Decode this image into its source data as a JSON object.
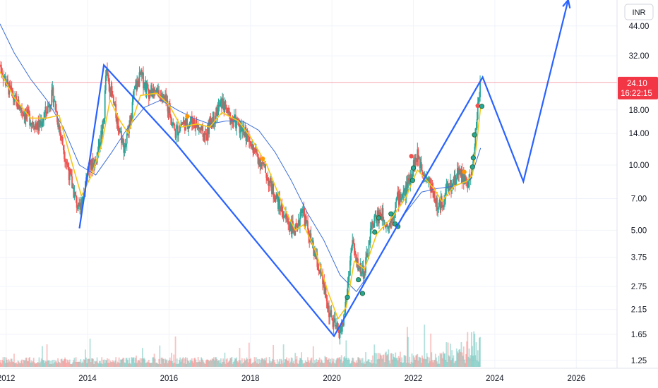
{
  "currency_button": "INR",
  "price_badge": {
    "price": "24.10",
    "countdown": "16:22:15"
  },
  "colors": {
    "up": "#26a69a",
    "down": "#ef5350",
    "pattern": "#2962ff",
    "ma_fast": "#f5c518",
    "ma_slow": "#3d6fd6",
    "badge": "#f23645",
    "marker_green": "#26a69a",
    "marker_red": "#ef5350",
    "marker_orange": "#ff9800"
  },
  "chart_data": {
    "type": "line",
    "x_unit": "year",
    "y_scale": "log",
    "xlim": [
      2011.85,
      2027.0
    ],
    "ylim": [
      1.15,
      58
    ],
    "y_ticks": [
      1.25,
      1.65,
      2.15,
      2.75,
      3.75,
      5.0,
      7.0,
      10.0,
      14.0,
      18.0,
      32.0,
      44.0
    ],
    "y_tick_labels": [
      "1.25",
      "1.65",
      "2.15",
      "2.75",
      "3.75",
      "5.00",
      "7.00",
      "10.00",
      "14.00",
      "18.00",
      "32.00",
      "44.00"
    ],
    "x_ticks": [
      2012,
      2014,
      2016,
      2018,
      2020,
      2022,
      2024,
      2026
    ],
    "x_tick_labels": [
      "2012",
      "2014",
      "2016",
      "2018",
      "2020",
      "2022",
      "2024",
      "2026"
    ],
    "grid": true,
    "last_price": 24.1,
    "price_series": [
      [
        2011.85,
        29.0
      ],
      [
        2012.0,
        24.0
      ],
      [
        2012.2,
        20.0
      ],
      [
        2012.5,
        17.0
      ],
      [
        2012.8,
        15.0
      ],
      [
        2013.0,
        18.0
      ],
      [
        2013.15,
        21.5
      ],
      [
        2013.3,
        15.0
      ],
      [
        2013.5,
        10.0
      ],
      [
        2013.7,
        7.0
      ],
      [
        2013.8,
        6.0
      ],
      [
        2014.0,
        9.5
      ],
      [
        2014.2,
        10.5
      ],
      [
        2014.4,
        16.0
      ],
      [
        2014.45,
        27.0
      ],
      [
        2014.55,
        23.0
      ],
      [
        2014.7,
        17.0
      ],
      [
        2014.9,
        12.0
      ],
      [
        2015.0,
        14.0
      ],
      [
        2015.15,
        22.0
      ],
      [
        2015.3,
        26.0
      ],
      [
        2015.5,
        22.0
      ],
      [
        2015.8,
        21.0
      ],
      [
        2016.0,
        18.5
      ],
      [
        2016.15,
        14.0
      ],
      [
        2016.3,
        15.5
      ],
      [
        2016.6,
        16.0
      ],
      [
        2016.9,
        13.5
      ],
      [
        2017.0,
        15.5
      ],
      [
        2017.3,
        19.5
      ],
      [
        2017.5,
        16.5
      ],
      [
        2017.8,
        15.0
      ],
      [
        2018.0,
        12.5
      ],
      [
        2018.3,
        10.0
      ],
      [
        2018.5,
        8.0
      ],
      [
        2018.8,
        6.0
      ],
      [
        2019.0,
        5.2
      ],
      [
        2019.15,
        4.8
      ],
      [
        2019.25,
        6.5
      ],
      [
        2019.5,
        4.3
      ],
      [
        2019.75,
        3.0
      ],
      [
        2019.9,
        2.2
      ],
      [
        2020.0,
        1.9
      ],
      [
        2020.15,
        1.7
      ],
      [
        2020.25,
        1.75
      ],
      [
        2020.35,
        2.4
      ],
      [
        2020.5,
        4.5
      ],
      [
        2020.6,
        3.5
      ],
      [
        2020.8,
        3.2
      ],
      [
        2021.0,
        5.5
      ],
      [
        2021.2,
        6.0
      ],
      [
        2021.4,
        5.2
      ],
      [
        2021.6,
        7.0
      ],
      [
        2021.8,
        7.5
      ],
      [
        2022.0,
        10.0
      ],
      [
        2022.1,
        11.0
      ],
      [
        2022.3,
        9.0
      ],
      [
        2022.5,
        7.5
      ],
      [
        2022.6,
        6.2
      ],
      [
        2022.8,
        7.5
      ],
      [
        2023.0,
        8.5
      ],
      [
        2023.1,
        9.5
      ],
      [
        2023.3,
        8.2
      ],
      [
        2023.4,
        8.5
      ],
      [
        2023.45,
        10.0
      ],
      [
        2023.52,
        14.0
      ],
      [
        2023.6,
        20.0
      ],
      [
        2023.65,
        24.1
      ]
    ],
    "ma_fast": [
      [
        2011.85,
        27.0
      ],
      [
        2012.2,
        20.5
      ],
      [
        2012.6,
        16.5
      ],
      [
        2013.0,
        16.5
      ],
      [
        2013.3,
        17.0
      ],
      [
        2013.6,
        10.5
      ],
      [
        2013.85,
        7.2
      ],
      [
        2014.1,
        9.0
      ],
      [
        2014.35,
        12.5
      ],
      [
        2014.55,
        20.0
      ],
      [
        2014.8,
        16.0
      ],
      [
        2015.0,
        14.0
      ],
      [
        2015.3,
        21.0
      ],
      [
        2015.7,
        21.5
      ],
      [
        2016.0,
        19.0
      ],
      [
        2016.3,
        15.0
      ],
      [
        2016.7,
        15.5
      ],
      [
        2017.0,
        15.0
      ],
      [
        2017.3,
        17.5
      ],
      [
        2017.7,
        16.0
      ],
      [
        2018.0,
        13.5
      ],
      [
        2018.4,
        10.0
      ],
      [
        2018.8,
        6.5
      ],
      [
        2019.1,
        5.0
      ],
      [
        2019.3,
        5.3
      ],
      [
        2019.6,
        4.0
      ],
      [
        2019.9,
        2.6
      ],
      [
        2020.15,
        1.95
      ],
      [
        2020.35,
        2.2
      ],
      [
        2020.55,
        3.6
      ],
      [
        2020.8,
        3.3
      ],
      [
        2021.1,
        4.8
      ],
      [
        2021.5,
        5.8
      ],
      [
        2021.8,
        7.0
      ],
      [
        2022.1,
        9.5
      ],
      [
        2022.5,
        7.8
      ],
      [
        2022.7,
        6.8
      ],
      [
        2023.0,
        8.0
      ],
      [
        2023.3,
        8.4
      ],
      [
        2023.45,
        9.0
      ],
      [
        2023.55,
        12.5
      ],
      [
        2023.65,
        18.5
      ]
    ],
    "ma_slow": [
      [
        2011.85,
        45.0
      ],
      [
        2012.2,
        33.0
      ],
      [
        2012.6,
        25.0
      ],
      [
        2013.0,
        20.0
      ],
      [
        2013.4,
        15.0
      ],
      [
        2013.8,
        10.0
      ],
      [
        2014.2,
        9.0
      ],
      [
        2014.6,
        11.5
      ],
      [
        2015.0,
        15.0
      ],
      [
        2015.4,
        18.5
      ],
      [
        2015.8,
        20.0
      ],
      [
        2016.2,
        18.0
      ],
      [
        2016.6,
        16.5
      ],
      [
        2017.0,
        15.5
      ],
      [
        2017.4,
        16.0
      ],
      [
        2017.8,
        16.0
      ],
      [
        2018.2,
        14.5
      ],
      [
        2018.6,
        11.5
      ],
      [
        2019.0,
        8.5
      ],
      [
        2019.4,
        6.0
      ],
      [
        2019.8,
        4.5
      ],
      [
        2020.2,
        3.1
      ],
      [
        2020.6,
        2.6
      ],
      [
        2021.0,
        3.3
      ],
      [
        2021.4,
        4.5
      ],
      [
        2021.8,
        6.0
      ],
      [
        2022.2,
        7.5
      ],
      [
        2022.6,
        7.8
      ],
      [
        2023.0,
        8.0
      ],
      [
        2023.4,
        8.6
      ],
      [
        2023.65,
        12.0
      ]
    ],
    "pattern_line": [
      [
        2013.8,
        5.1
      ],
      [
        2014.4,
        29.0
      ],
      [
        2016.15,
        12.7
      ],
      [
        2020.05,
        1.62
      ],
      [
        2023.7,
        25.5
      ],
      [
        2024.7,
        8.4
      ],
      [
        2025.8,
        58.0
      ]
    ],
    "markers": [
      {
        "x": 2016.45,
        "y": 16.8,
        "color": "orange"
      },
      {
        "x": 2018.3,
        "y": 10.7,
        "color": "orange"
      },
      {
        "x": 2020.38,
        "y": 2.45,
        "color": "green"
      },
      {
        "x": 2020.65,
        "y": 2.95,
        "color": "green"
      },
      {
        "x": 2020.75,
        "y": 2.55,
        "color": "green"
      },
      {
        "x": 2021.05,
        "y": 4.9,
        "color": "green"
      },
      {
        "x": 2021.15,
        "y": 5.7,
        "color": "green"
      },
      {
        "x": 2021.45,
        "y": 5.95,
        "color": "green"
      },
      {
        "x": 2021.55,
        "y": 5.35,
        "color": "green"
      },
      {
        "x": 2021.62,
        "y": 5.2,
        "color": "green"
      },
      {
        "x": 2021.95,
        "y": 11.0,
        "color": "red"
      },
      {
        "x": 2021.98,
        "y": 8.5,
        "color": "green"
      },
      {
        "x": 2022.0,
        "y": 9.7,
        "color": "green"
      },
      {
        "x": 2023.25,
        "y": 9.3,
        "color": "orange"
      },
      {
        "x": 2023.45,
        "y": 9.8,
        "color": "green"
      },
      {
        "x": 2023.47,
        "y": 10.8,
        "color": "green"
      },
      {
        "x": 2023.5,
        "y": 13.8,
        "color": "green"
      },
      {
        "x": 2023.58,
        "y": 18.8,
        "color": "red"
      },
      {
        "x": 2023.68,
        "y": 18.7,
        "color": "green"
      }
    ]
  }
}
